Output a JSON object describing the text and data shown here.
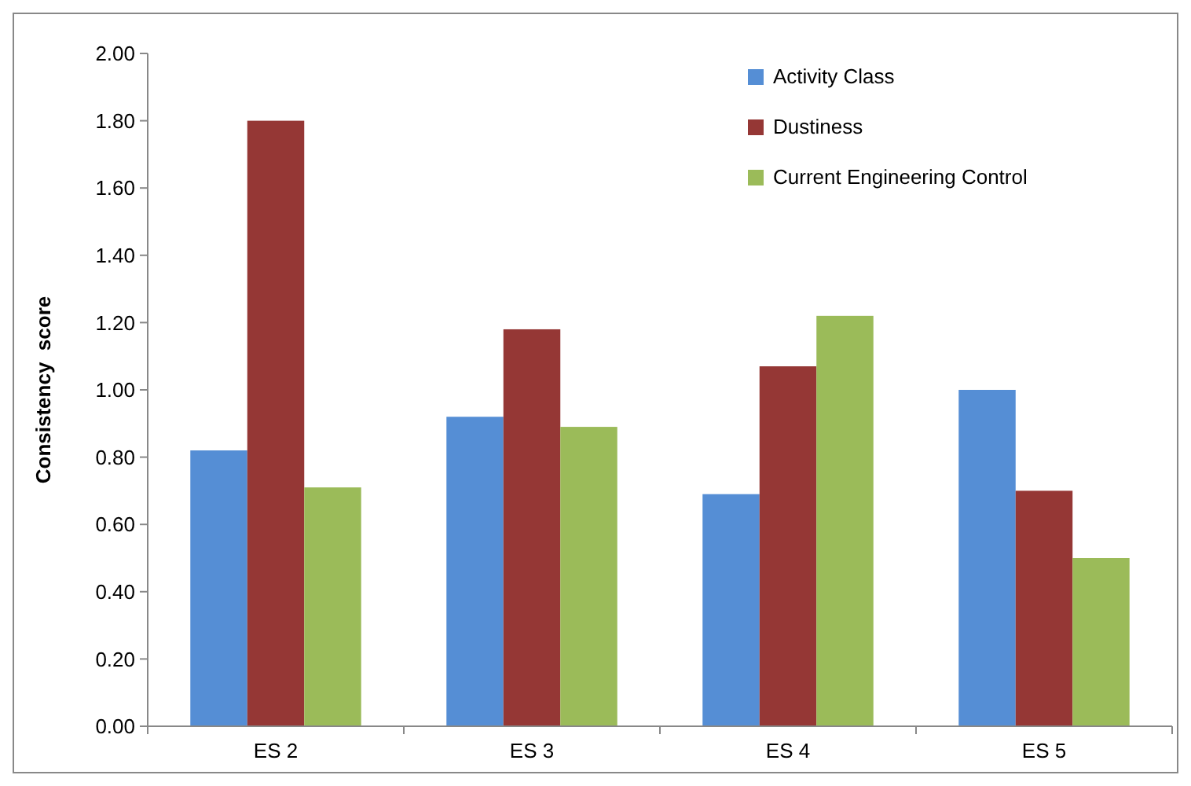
{
  "chart_data": {
    "type": "bar",
    "ylabel": "Consistency  score",
    "categories": [
      "ES 2",
      "ES 3",
      "ES 4",
      "ES 5"
    ],
    "series": [
      {
        "name": "Activity Class",
        "color": "#558ed5",
        "values": [
          0.82,
          0.92,
          0.69,
          1.0
        ]
      },
      {
        "name": "Dustiness",
        "color": "#953735",
        "values": [
          1.8,
          1.18,
          1.07,
          0.7
        ]
      },
      {
        "name": "Current Engineering Control",
        "color": "#9bbb59",
        "values": [
          0.71,
          0.89,
          1.22,
          0.5
        ]
      }
    ],
    "ylim": [
      0,
      2
    ],
    "yticks": [
      {
        "value": 0,
        "label": "0.00"
      },
      {
        "value": 0.2,
        "label": "0.20"
      },
      {
        "value": 0.4,
        "label": "0.40"
      },
      {
        "value": 0.6,
        "label": "0.60"
      },
      {
        "value": 0.8,
        "label": "0.80"
      },
      {
        "value": 1,
        "label": "1.00"
      },
      {
        "value": 1.2,
        "label": "1.20"
      },
      {
        "value": 1.4,
        "label": "1.40"
      },
      {
        "value": 1.6,
        "label": "1.60"
      },
      {
        "value": 1.8,
        "label": "1.80"
      },
      {
        "value": 2,
        "label": "2.00"
      }
    ],
    "grid": false,
    "legend": "top right"
  }
}
